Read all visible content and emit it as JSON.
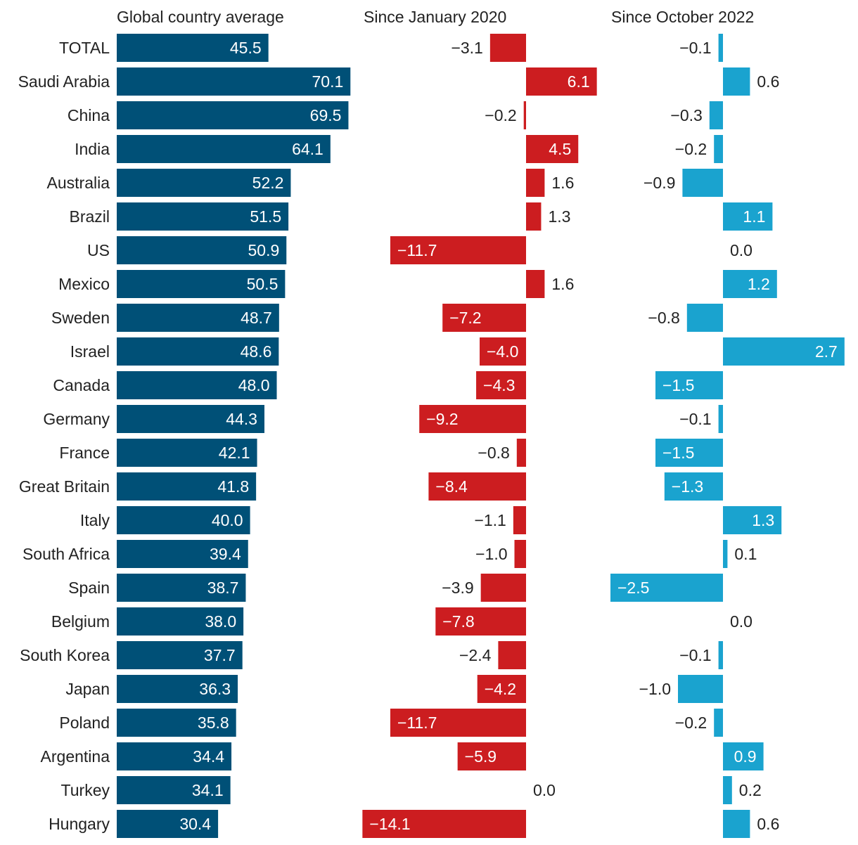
{
  "headers": {
    "global": "Global country average",
    "since_jan_2020": "Since January 2020",
    "since_oct_2022": "Since October 2022"
  },
  "colors": {
    "global_bar": "#005077",
    "jan2020_bar": "#cc1d20",
    "oct2022_bar": "#1aa3cf",
    "label_dark": "#222222",
    "label_light": "#ffffff"
  },
  "chart_data": {
    "type": "bar",
    "orientation": "horizontal",
    "categories": [
      "TOTAL",
      "Saudi Arabia",
      "China",
      "India",
      "Australia",
      "Brazil",
      "US",
      "Mexico",
      "Sweden",
      "Israel",
      "Canada",
      "Germany",
      "France",
      "Great Britain",
      "Italy",
      "South Africa",
      "Spain",
      "Belgium",
      "South Korea",
      "Japan",
      "Poland",
      "Argentina",
      "Turkey",
      "Hungary"
    ],
    "series": [
      {
        "name": "Global country average",
        "values": [
          45.5,
          70.1,
          69.5,
          64.1,
          52.2,
          51.5,
          50.9,
          50.5,
          48.7,
          48.6,
          48.0,
          44.3,
          42.1,
          41.8,
          40.0,
          39.4,
          38.7,
          38.0,
          37.7,
          36.3,
          35.8,
          34.4,
          34.1,
          30.4
        ],
        "labels": [
          "45.5",
          "70.1",
          "69.5",
          "64.1",
          "52.2",
          "51.5",
          "50.9",
          "50.5",
          "48.7",
          "48.6",
          "48.0",
          "44.3",
          "42.1",
          "41.8",
          "40.0",
          "39.4",
          "38.7",
          "38.0",
          "37.7",
          "36.3",
          "35.8",
          "34.4",
          "34.1",
          "30.4"
        ]
      },
      {
        "name": "Since January 2020",
        "values": [
          -3.1,
          6.1,
          -0.2,
          4.5,
          1.6,
          1.3,
          -11.7,
          1.6,
          -7.2,
          -4.0,
          -4.3,
          -9.2,
          -0.8,
          -8.4,
          -1.1,
          -1.0,
          -3.9,
          -7.8,
          -2.4,
          -4.2,
          -11.7,
          -5.9,
          0.0,
          -14.1
        ],
        "labels": [
          "−3.1",
          "6.1",
          "−0.2",
          "4.5",
          "1.6",
          "1.3",
          "−11.7",
          "1.6",
          "−7.2",
          "−4.0",
          "−4.3",
          "−9.2",
          "−0.8",
          "−8.4",
          "−1.1",
          "−1.0",
          "−3.9",
          "−7.8",
          "−2.4",
          "−4.2",
          "−11.7",
          "−5.9",
          "0.0",
          "−14.1"
        ]
      },
      {
        "name": "Since October 2022",
        "values": [
          -0.1,
          0.6,
          -0.3,
          -0.2,
          -0.9,
          1.1,
          0.0,
          1.2,
          -0.8,
          2.7,
          -1.5,
          -0.1,
          -1.5,
          -1.3,
          1.3,
          0.1,
          -2.5,
          0.0,
          -0.1,
          -1.0,
          -0.2,
          0.9,
          0.2,
          0.6
        ],
        "labels": [
          "−0.1",
          "0.6",
          "−0.3",
          "−0.2",
          "−0.9",
          "1.1",
          "0.0",
          "1.2",
          "−0.8",
          "2.7",
          "−1.5",
          "−0.1",
          "−1.5",
          "−1.3",
          "1.3",
          "0.1",
          "−2.5",
          "0.0",
          "−0.1",
          "−1.0",
          "−0.2",
          "0.9",
          "0.2",
          "0.6"
        ]
      }
    ],
    "grid": false,
    "legend": "none"
  }
}
